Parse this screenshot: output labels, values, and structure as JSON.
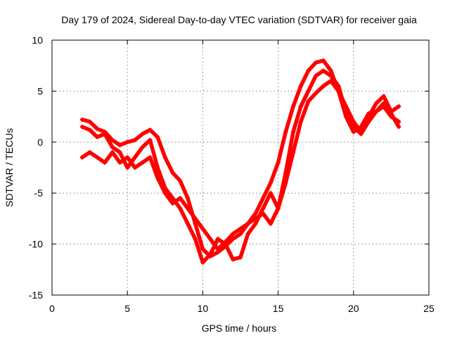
{
  "chart_data": {
    "type": "scatter",
    "title": "Day 179 of 2024, Sidereal Day-to-day VTEC variation (SDTVAR) for receiver gaia",
    "xlabel": "GPS time / hours",
    "ylabel": "SDTVAR / TECUs",
    "xlim": [
      0,
      25
    ],
    "ylim": [
      -15,
      10
    ],
    "xticks": [
      "0",
      "5",
      "10",
      "15",
      "20",
      "25"
    ],
    "yticks": [
      "-15",
      "-10",
      "-5",
      "0",
      "5",
      "10"
    ],
    "grid": true,
    "legend": "none",
    "marker": "plus",
    "color": "#ff0000",
    "series": [
      {
        "name": "track-1",
        "x": [
          2.0,
          2.5,
          3.0,
          3.5,
          4.0,
          4.5,
          5.0,
          5.5,
          6.0,
          6.5,
          7.0,
          7.5,
          8.0,
          8.5,
          9.0,
          9.5,
          10.0,
          10.5,
          11.0,
          11.5,
          12.0,
          12.5,
          13.0,
          13.5,
          14.0,
          14.5,
          15.0,
          15.5,
          16.0,
          16.5,
          17.0,
          17.5,
          18.0,
          18.5,
          19.0,
          19.5,
          20.0,
          20.5,
          21.0,
          21.5,
          22.0,
          22.5,
          23.0
        ],
        "y": [
          2.2,
          2.0,
          1.3,
          1.0,
          0.2,
          -0.3,
          0.0,
          0.2,
          0.8,
          1.2,
          0.5,
          -1.5,
          -3.0,
          -3.8,
          -5.5,
          -8.0,
          -10.5,
          -11.2,
          -10.8,
          -10.2,
          -9.5,
          -9.0,
          -8.0,
          -7.0,
          -5.5,
          -4.0,
          -2.0,
          1.0,
          3.5,
          5.5,
          7.0,
          7.8,
          8.0,
          7.0,
          5.0,
          3.5,
          2.0,
          1.0,
          2.5,
          3.8,
          4.5,
          3.0,
          3.5
        ]
      },
      {
        "name": "track-2",
        "x": [
          2.0,
          2.5,
          3.0,
          3.5,
          4.0,
          4.5,
          5.0,
          5.5,
          6.0,
          6.5,
          7.0,
          7.5,
          8.0,
          8.5,
          9.0,
          9.5,
          10.0,
          10.5,
          11.0,
          11.5,
          12.0,
          12.5,
          13.0,
          13.5,
          14.0,
          14.5,
          15.0,
          15.5,
          16.0,
          16.5,
          17.0,
          17.5,
          18.0,
          18.5,
          19.0,
          19.5,
          20.0,
          20.5,
          21.0,
          21.5,
          22.0,
          22.5,
          23.0
        ],
        "y": [
          1.5,
          1.2,
          0.5,
          0.8,
          -0.5,
          -1.0,
          -2.5,
          -1.5,
          -0.5,
          0.2,
          -2.5,
          -4.5,
          -5.5,
          -6.5,
          -8.0,
          -9.5,
          -11.8,
          -11.0,
          -9.5,
          -10.0,
          -11.5,
          -11.3,
          -9.0,
          -8.0,
          -6.5,
          -5.0,
          -6.5,
          -3.0,
          1.0,
          3.5,
          5.0,
          6.5,
          7.0,
          6.5,
          5.5,
          3.0,
          1.5,
          0.8,
          2.0,
          3.0,
          3.5,
          2.5,
          2.0
        ]
      },
      {
        "name": "track-3",
        "x": [
          2.0,
          2.5,
          3.0,
          3.5,
          4.0,
          4.5,
          5.0,
          5.5,
          6.0,
          6.5,
          7.0,
          7.5,
          8.0,
          8.5,
          9.0,
          9.5,
          10.0,
          10.5,
          11.0,
          11.5,
          12.0,
          12.5,
          13.0,
          13.5,
          14.0,
          14.5,
          15.0,
          15.5,
          16.0,
          16.5,
          17.0,
          17.5,
          18.0,
          18.5,
          19.0,
          19.5,
          20.0,
          20.5,
          21.0,
          21.5,
          22.0,
          22.5,
          23.0
        ],
        "y": [
          -1.5,
          -1.0,
          -1.5,
          -2.0,
          -1.0,
          -2.0,
          -1.5,
          -2.5,
          -2.0,
          -1.5,
          -3.5,
          -5.0,
          -6.0,
          -5.5,
          -6.5,
          -7.5,
          -8.5,
          -9.5,
          -10.5,
          -9.8,
          -9.0,
          -8.5,
          -8.0,
          -7.5,
          -7.0,
          -8.0,
          -6.5,
          -4.0,
          -1.0,
          2.0,
          4.0,
          4.8,
          5.5,
          6.0,
          5.0,
          2.5,
          1.0,
          1.5,
          2.8,
          3.0,
          3.8,
          2.8,
          1.5
        ]
      }
    ]
  }
}
